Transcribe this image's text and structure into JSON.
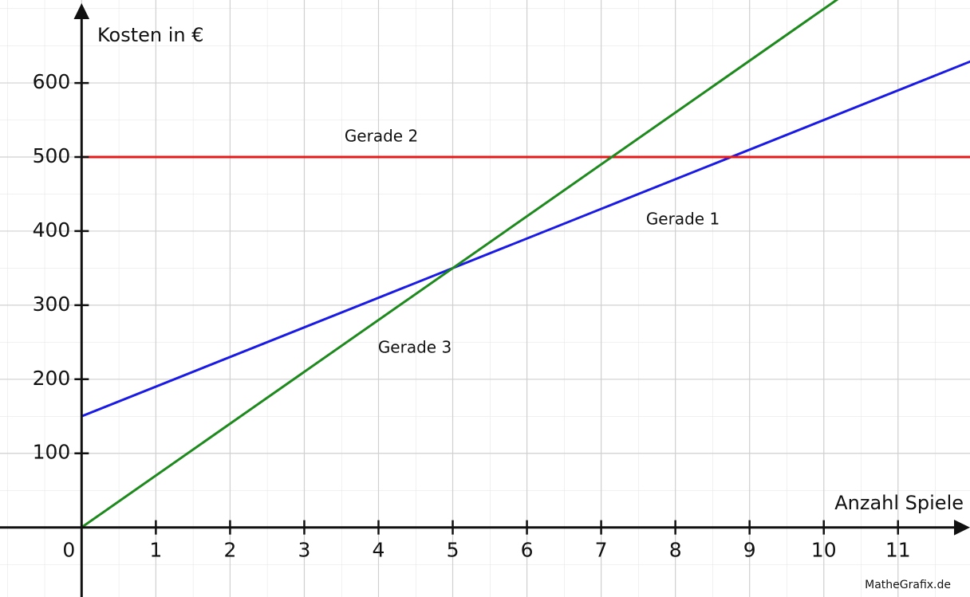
{
  "chart_data": {
    "type": "line",
    "x_label": "Anzahl Spiele",
    "y_label": "Kosten in €",
    "x": [
      0,
      12
    ],
    "series": [
      {
        "name": "Gerade 1",
        "color": "#1a1ae6",
        "values": [
          150,
          630
        ]
      },
      {
        "name": "Gerade 2",
        "color": "#e61a1a",
        "values": [
          500,
          500
        ]
      },
      {
        "name": "Gerade 3",
        "color": "#1e8a1e",
        "values": [
          0,
          840
        ]
      }
    ],
    "xlim": [
      -1.1,
      11.97
    ],
    "ylim": [
      -94,
      712
    ],
    "xticks": [
      0,
      1,
      2,
      3,
      4,
      5,
      6,
      7,
      8,
      9,
      10,
      11
    ],
    "yticks": [
      100,
      200,
      300,
      400,
      500,
      600
    ],
    "grid": true,
    "watermark": "MatheGrafix.de"
  }
}
